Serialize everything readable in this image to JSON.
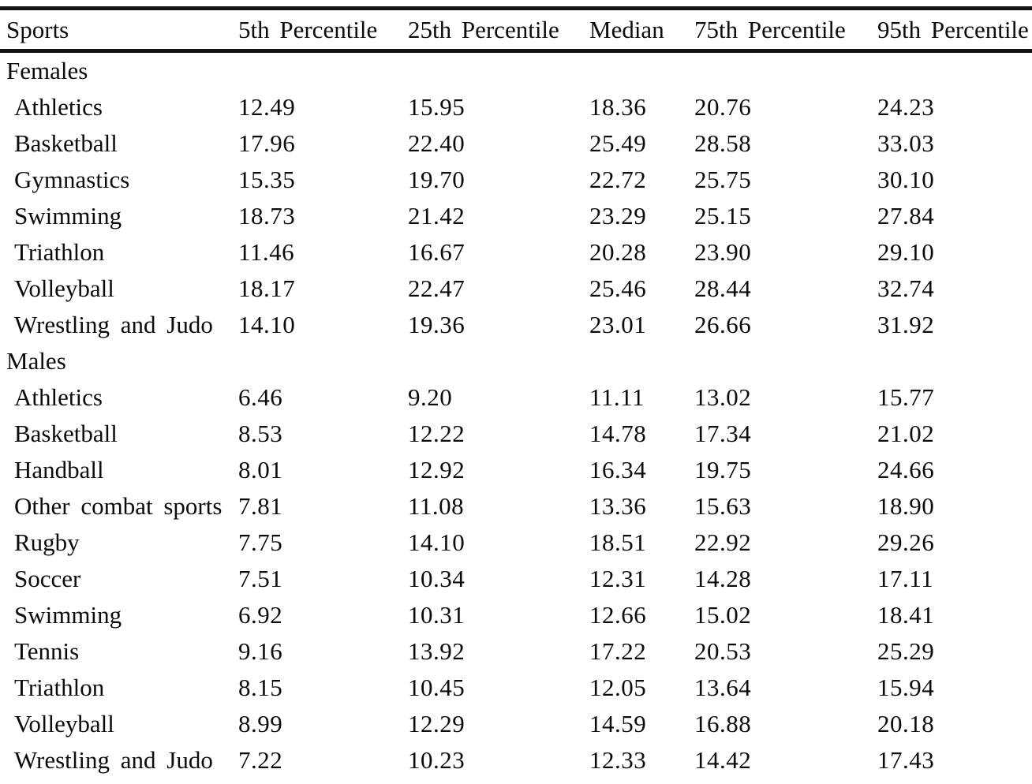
{
  "table": {
    "columns": [
      "Sports",
      "5th Percentile",
      "25th Percentile",
      "Median",
      "75th Percentile",
      "95th Percentile"
    ],
    "sections": [
      {
        "label": "Females",
        "rows": [
          {
            "sport": "Athletics",
            "values": [
              "12.49",
              "15.95",
              "18.36",
              "20.76",
              "24.23"
            ]
          },
          {
            "sport": "Basketball",
            "values": [
              "17.96",
              "22.40",
              "25.49",
              "28.58",
              "33.03"
            ]
          },
          {
            "sport": "Gymnastics",
            "values": [
              "15.35",
              "19.70",
              "22.72",
              "25.75",
              "30.10"
            ]
          },
          {
            "sport": "Swimming",
            "values": [
              "18.73",
              "21.42",
              "23.29",
              "25.15",
              "27.84"
            ]
          },
          {
            "sport": "Triathlon",
            "values": [
              "11.46",
              "16.67",
              "20.28",
              "23.90",
              "29.10"
            ]
          },
          {
            "sport": "Volleyball",
            "values": [
              "18.17",
              "22.47",
              "25.46",
              "28.44",
              "32.74"
            ]
          },
          {
            "sport": "Wrestling and Judo",
            "values": [
              "14.10",
              "19.36",
              "23.01",
              "26.66",
              "31.92"
            ]
          }
        ]
      },
      {
        "label": "Males",
        "rows": [
          {
            "sport": "Athletics",
            "values": [
              "6.46",
              "9.20",
              "11.11",
              "13.02",
              "15.77"
            ]
          },
          {
            "sport": "Basketball",
            "values": [
              "8.53",
              "12.22",
              "14.78",
              "17.34",
              "21.02"
            ]
          },
          {
            "sport": "Handball",
            "values": [
              "8.01",
              "12.92",
              "16.34",
              "19.75",
              "24.66"
            ]
          },
          {
            "sport": "Other combat sports",
            "values": [
              "7.81",
              "11.08",
              "13.36",
              "15.63",
              "18.90"
            ]
          },
          {
            "sport": "Rugby",
            "values": [
              "7.75",
              "14.10",
              "18.51",
              "22.92",
              "29.26"
            ]
          },
          {
            "sport": "Soccer",
            "values": [
              "7.51",
              "10.34",
              "12.31",
              "14.28",
              "17.11"
            ]
          },
          {
            "sport": "Swimming",
            "values": [
              "6.92",
              "10.31",
              "12.66",
              "15.02",
              "18.41"
            ]
          },
          {
            "sport": "Tennis",
            "values": [
              "9.16",
              "13.92",
              "17.22",
              "20.53",
              "25.29"
            ]
          },
          {
            "sport": "Triathlon",
            "values": [
              "8.15",
              "10.45",
              "12.05",
              "13.64",
              "15.94"
            ]
          },
          {
            "sport": "Volleyball",
            "values": [
              "8.99",
              "12.29",
              "14.59",
              "16.88",
              "20.18"
            ]
          },
          {
            "sport": "Wrestling and Judo",
            "values": [
              "7.22",
              "10.23",
              "12.33",
              "14.42",
              "17.43"
            ]
          }
        ]
      }
    ],
    "colors": {
      "text": "#0b0b0b",
      "rule": "#121212",
      "background": "#ffffff"
    }
  }
}
